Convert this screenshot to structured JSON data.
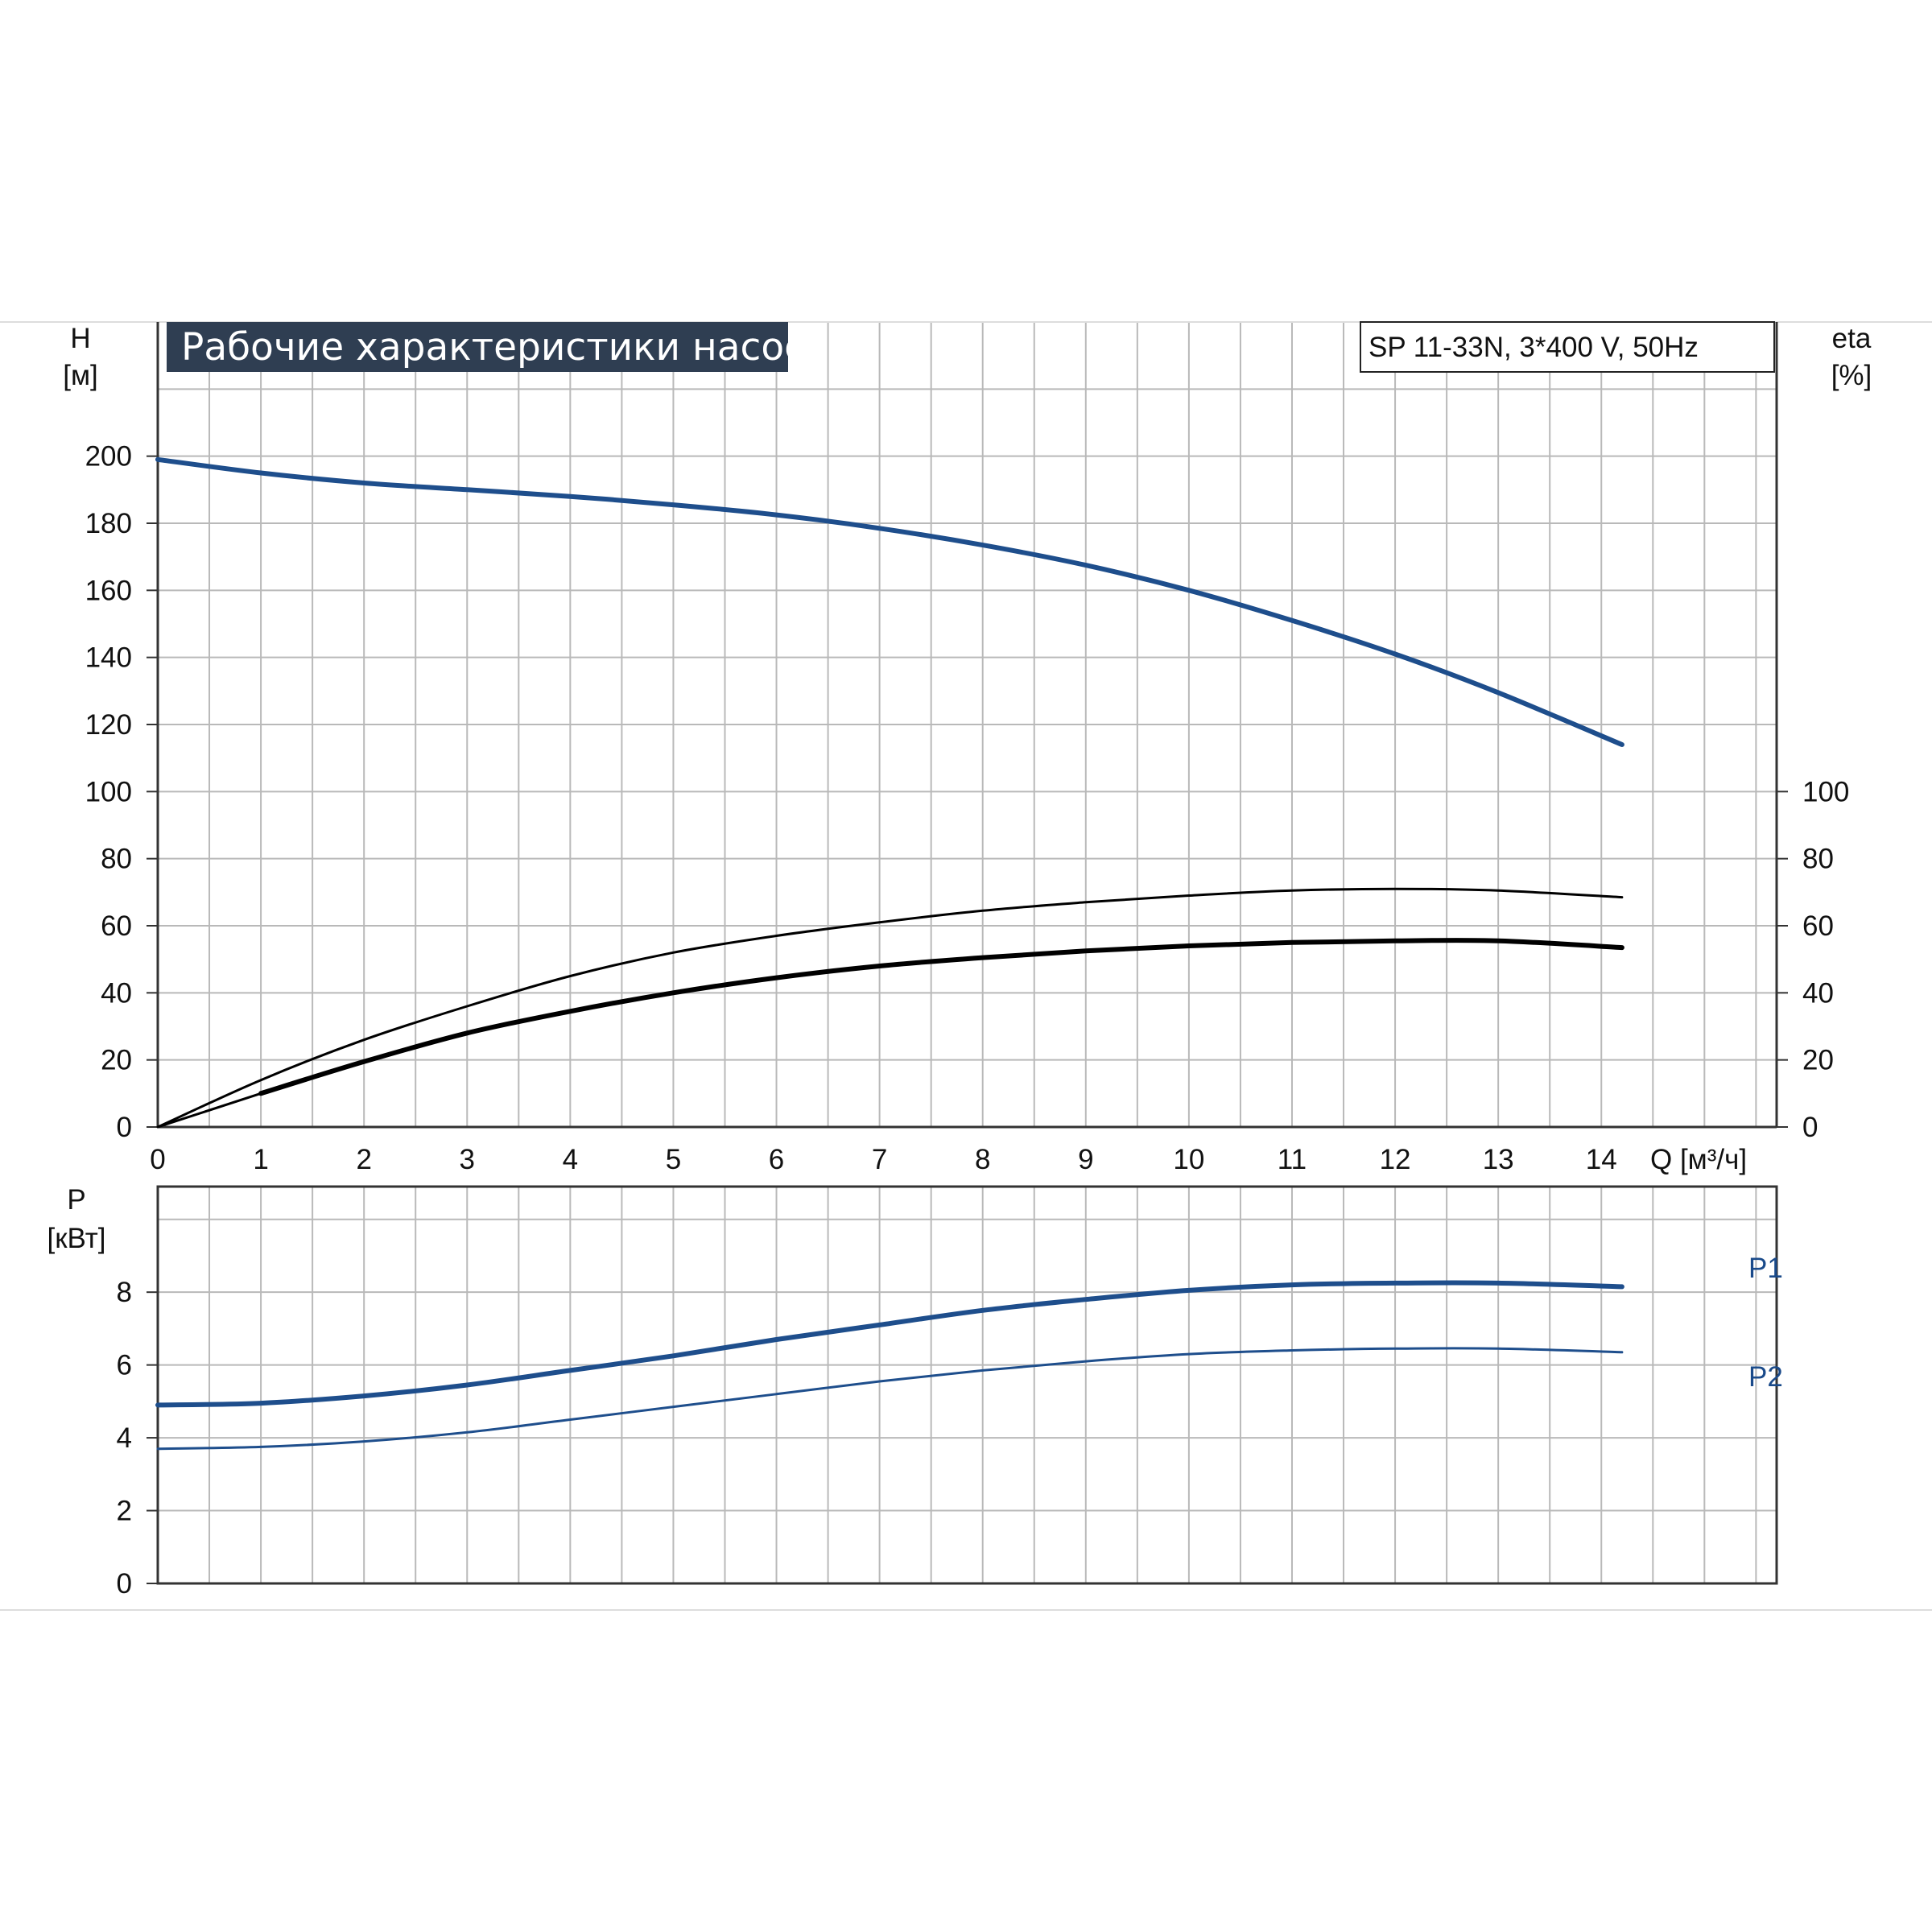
{
  "title": "Рабочие характеристики насоса",
  "model": "SP 11-33N, 3*400 V, 50Hz",
  "colors": {
    "blue": "#1e4e8c",
    "black": "#000000",
    "grid": "#b9b9b9",
    "title_bg": "#2f3e52"
  },
  "chart_data": [
    {
      "type": "line",
      "xlabel": "Q [м³/ч]",
      "x_ticks": [
        "0",
        "1",
        "2",
        "3",
        "4",
        "5",
        "6",
        "7",
        "8",
        "9",
        "10",
        "11",
        "12",
        "13",
        "14"
      ],
      "xlim": [
        0,
        15.7
      ],
      "ylabel_left": "H",
      "ylabel_left_unit": "[м]",
      "left_ticks": [
        "0",
        "20",
        "40",
        "60",
        "80",
        "100",
        "120",
        "140",
        "160",
        "180",
        "200"
      ],
      "ylim_left": [
        0,
        240
      ],
      "ylabel_right": "eta",
      "ylabel_right_unit": "[%]",
      "right_ticks": [
        "0",
        "20",
        "40",
        "60",
        "80",
        "100"
      ],
      "grid": true,
      "series": [
        {
          "axis": "left",
          "color": "blue",
          "width": 6,
          "x": [
            0,
            1,
            2,
            3,
            4,
            5,
            6,
            7,
            8,
            9,
            10,
            11,
            12,
            13,
            14.2
          ],
          "y": [
            199,
            195,
            192,
            190,
            188,
            185.5,
            182.5,
            178.5,
            173.5,
            167.5,
            160,
            151,
            141,
            129.5,
            114
          ]
        },
        {
          "axis": "right",
          "color": "black",
          "width": 3,
          "x": [
            0,
            1,
            2,
            3,
            4,
            5,
            6,
            7,
            8,
            9,
            10,
            11,
            12,
            13,
            14.2
          ],
          "y": [
            0,
            14,
            26,
            36,
            45,
            52,
            57,
            61,
            64.5,
            67,
            69,
            70.5,
            71,
            70.5,
            68.5
          ]
        },
        {
          "axis": "right",
          "color": "black",
          "width": 6,
          "x": [
            1,
            2,
            3,
            4,
            5,
            6,
            7,
            8,
            9,
            10,
            11,
            12,
            13,
            14.2
          ],
          "y": [
            10,
            19.5,
            28,
            34.5,
            40,
            44.5,
            48,
            50.5,
            52.5,
            54,
            55,
            55.5,
            55.5,
            53.5
          ]
        }
      ]
    },
    {
      "type": "line",
      "ylabel": "P",
      "ylabel_unit": "[кВт]",
      "y_ticks": [
        "0",
        "2",
        "4",
        "6",
        "8"
      ],
      "ylim": [
        0,
        10.9
      ],
      "xlim": [
        0,
        15.7
      ],
      "grid": true,
      "series": [
        {
          "name": "P1",
          "color": "blue",
          "width": 6,
          "x": [
            0,
            1,
            2,
            3,
            4,
            5,
            6,
            7,
            8,
            9,
            10,
            11,
            12,
            13,
            14.2
          ],
          "y": [
            4.9,
            4.95,
            5.15,
            5.45,
            5.85,
            6.25,
            6.7,
            7.1,
            7.5,
            7.8,
            8.05,
            8.2,
            8.25,
            8.25,
            8.15
          ]
        },
        {
          "name": "P2",
          "color": "blue",
          "width": 3,
          "x": [
            0,
            1,
            2,
            3,
            4,
            5,
            6,
            7,
            8,
            9,
            10,
            11,
            12,
            13,
            14.2
          ],
          "y": [
            3.7,
            3.75,
            3.9,
            4.15,
            4.5,
            4.85,
            5.2,
            5.55,
            5.85,
            6.1,
            6.3,
            6.4,
            6.45,
            6.45,
            6.35
          ]
        }
      ]
    }
  ]
}
